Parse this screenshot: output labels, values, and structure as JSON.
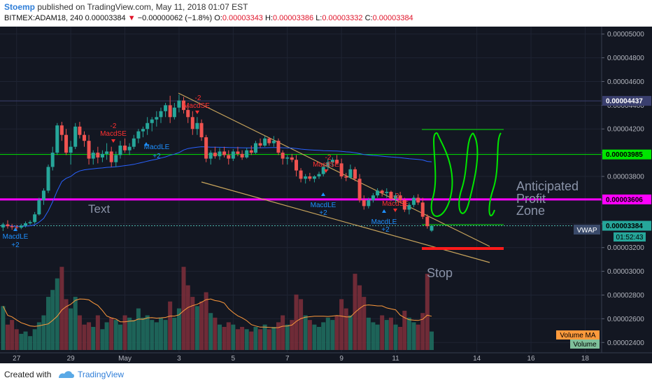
{
  "header": {
    "author": "Stoemp",
    "published_text": "published on TradingView.com, May 11, 2018 01:07 EST",
    "symbol": "BITMEX:ADAM18, 240",
    "last": "0.00003384",
    "change": "−0.00000062 (−1.8%)",
    "o_label": "O:",
    "o_value": "0.00003343",
    "h_label": "H:",
    "h_value": "0.00003386",
    "l_label": "L:",
    "l_value": "0.00003332",
    "c_label": "C:",
    "c_value": "0.00003384"
  },
  "footer": {
    "created_with": "Created with",
    "brand": "TradingView"
  },
  "chart_data": {
    "type": "candlestick",
    "x_ticks": [
      {
        "label": "27",
        "t": 0.2
      },
      {
        "label": "29",
        "t": 2.2
      },
      {
        "label": "May",
        "t": 4.2
      },
      {
        "label": "3",
        "t": 6.2
      },
      {
        "label": "5",
        "t": 8.2
      },
      {
        "label": "7",
        "t": 10.2
      },
      {
        "label": "9",
        "t": 12.2
      },
      {
        "label": "11",
        "t": 14.2
      },
      {
        "label": "14",
        "t": 17.2
      },
      {
        "label": "16",
        "t": 19.2
      },
      {
        "label": "18",
        "t": 21.2
      }
    ],
    "y_ticks": [
      "0.00005000",
      "0.00004800",
      "0.00004600",
      "0.00004400",
      "0.00004200",
      "0.00004000",
      "0.00003800",
      "0.00003600",
      "0.00003400",
      "0.00003200",
      "0.00003000",
      "0.00002800",
      "0.00002600",
      "0.00002400"
    ],
    "ylim": [
      2.313e-05,
      5.063e-05
    ],
    "price_labels": [
      {
        "value": "0.00004437",
        "price": 4.437e-05,
        "color": "#3a3f6e",
        "text_color": "#ffffff"
      },
      {
        "value": "0.00003985",
        "price": 3.985e-05,
        "color": "#00e600",
        "text_color": "#000000"
      },
      {
        "value": "0.00003606",
        "price": 3.606e-05,
        "color": "#ff00ff",
        "text_color": "#000000"
      },
      {
        "value": "0.00003384",
        "price": 3.384e-05,
        "color": "#26a69a",
        "text_color": "#000000"
      }
    ],
    "countdown": "01:52:43",
    "vwap_label": "VWAP",
    "legend": [
      "Volume MA",
      "Volume"
    ],
    "annotations": {
      "text_label": "Text",
      "zone_label_lines": [
        "Anticipated",
        "Profit",
        "Zone"
      ],
      "stop_label": "Stop"
    },
    "signals": {
      "long_label": "MacdLE",
      "long_sub": "+2",
      "short_label": "MacdSE",
      "short_top": "-2"
    },
    "candles": [
      [
        -0.3,
        3.37e-05,
        3.41e-05,
        3.34e-05,
        3.395e-05,
        190
      ],
      [
        -0.13,
        3.395e-05,
        3.43e-05,
        3.36e-05,
        3.38e-05,
        110
      ],
      [
        0.03,
        3.38e-05,
        3.4e-05,
        3.35e-05,
        3.372e-05,
        130
      ],
      [
        0.2,
        3.372e-05,
        3.39e-05,
        3.34e-05,
        3.368e-05,
        90
      ],
      [
        0.37,
        3.368e-05,
        3.4e-05,
        3.355e-05,
        3.385e-05,
        70
      ],
      [
        0.53,
        3.385e-05,
        3.42e-05,
        3.37e-05,
        3.405e-05,
        80
      ],
      [
        0.7,
        3.405e-05,
        3.43e-05,
        3.39e-05,
        3.415e-05,
        60
      ],
      [
        0.87,
        3.415e-05,
        3.5e-05,
        3.4e-05,
        3.48e-05,
        90
      ],
      [
        1.03,
        3.48e-05,
        3.62e-05,
        3.47e-05,
        3.6e-05,
        120
      ],
      [
        1.2,
        3.6e-05,
        3.7e-05,
        3.56e-05,
        3.68e-05,
        150
      ],
      [
        1.37,
        3.68e-05,
        3.9e-05,
        3.66e-05,
        3.88e-05,
        230
      ],
      [
        1.53,
        3.88e-05,
        4.05e-05,
        3.85e-05,
        4e-05,
        260
      ],
      [
        1.7,
        4e-05,
        4.25e-05,
        3.98e-05,
        4.23e-05,
        310
      ],
      [
        1.87,
        4.23e-05,
        4.26e-05,
        4.1e-05,
        4.15e-05,
        360
      ],
      [
        2.03,
        4.15e-05,
        4.2e-05,
        3.98e-05,
        4e-05,
        220
      ],
      [
        2.2,
        4e-05,
        4.1e-05,
        3.9e-05,
        4.05e-05,
        180
      ],
      [
        2.37,
        4.05e-05,
        4.25e-05,
        4.03e-05,
        4.22e-05,
        230
      ],
      [
        2.53,
        4.22e-05,
        4.26e-05,
        4.12e-05,
        4.15e-05,
        150
      ],
      [
        2.7,
        4.15e-05,
        4.18e-05,
        4.05e-05,
        4.1e-05,
        110
      ],
      [
        2.87,
        4.1e-05,
        4.15e-05,
        3.9e-05,
        3.95e-05,
        120
      ],
      [
        3.03,
        3.95e-05,
        4.02e-05,
        3.9e-05,
        4e-05,
        100
      ],
      [
        3.2,
        4e-05,
        4.05e-05,
        3.91e-05,
        3.96e-05,
        150
      ],
      [
        3.37,
        3.96e-05,
        4.02e-05,
        3.92e-05,
        3.99e-05,
        90
      ],
      [
        3.53,
        3.99e-05,
        4.08e-05,
        3.94e-05,
        4.01e-05,
        120
      ],
      [
        3.7,
        4.01e-05,
        4.05e-05,
        3.88e-05,
        3.92e-05,
        140
      ],
      [
        3.87,
        3.92e-05,
        4.01e-05,
        3.88e-05,
        3.98e-05,
        130
      ],
      [
        4.03,
        3.98e-05,
        4.1e-05,
        3.95e-05,
        4.06e-05,
        110
      ],
      [
        4.2,
        4.06e-05,
        4.12e-05,
        4e-05,
        4.02e-05,
        150
      ],
      [
        4.37,
        4.02e-05,
        4.08e-05,
        3.98e-05,
        4.05e-05,
        140
      ],
      [
        4.53,
        4.05e-05,
        4.15e-05,
        4.03e-05,
        4.12e-05,
        130
      ],
      [
        4.7,
        4.12e-05,
        4.2e-05,
        4.08e-05,
        4.18e-05,
        180
      ],
      [
        4.87,
        4.18e-05,
        4.22e-05,
        4.13e-05,
        4.2e-05,
        140
      ],
      [
        5.03,
        4.2e-05,
        4.3e-05,
        4.15e-05,
        4.25e-05,
        150
      ],
      [
        5.2,
        4.25e-05,
        4.3e-05,
        4.18e-05,
        4.28e-05,
        130
      ],
      [
        5.37,
        4.28e-05,
        4.35e-05,
        4.22e-05,
        4.3e-05,
        120
      ],
      [
        5.53,
        4.3e-05,
        4.38e-05,
        4.25e-05,
        4.35e-05,
        140
      ],
      [
        5.7,
        4.35e-05,
        4.42e-05,
        4.3e-05,
        4.4e-05,
        130
      ],
      [
        5.87,
        4.4e-05,
        4.48e-05,
        4.25e-05,
        4.3e-05,
        210
      ],
      [
        6.03,
        4.3e-05,
        4.42e-05,
        4.28e-05,
        4.38e-05,
        140
      ],
      [
        6.2,
        4.38e-05,
        4.49e-05,
        4.34e-05,
        4.44e-05,
        180
      ],
      [
        6.37,
        4.44e-05,
        4.47e-05,
        4.33e-05,
        4.36e-05,
        360
      ],
      [
        6.53,
        4.36e-05,
        4.4e-05,
        4.25e-05,
        4.3e-05,
        280
      ],
      [
        6.7,
        4.3e-05,
        4.35e-05,
        4.15e-05,
        4.2e-05,
        230
      ],
      [
        6.87,
        4.2e-05,
        4.3e-05,
        4.15e-05,
        4.25e-05,
        190
      ],
      [
        7.03,
        4.25e-05,
        4.28e-05,
        4.1e-05,
        4.13e-05,
        210
      ],
      [
        7.2,
        4.13e-05,
        4.15e-05,
        3.92e-05,
        3.95e-05,
        250
      ],
      [
        7.37,
        3.95e-05,
        4.02e-05,
        3.9e-05,
        4e-05,
        160
      ],
      [
        7.53,
        4e-05,
        4.05e-05,
        3.95e-05,
        3.97e-05,
        140
      ],
      [
        7.7,
        3.97e-05,
        4.04e-05,
        3.94e-05,
        4.01e-05,
        110
      ],
      [
        7.87,
        4.01e-05,
        4.05e-05,
        3.96e-05,
        3.98e-05,
        100
      ],
      [
        8.03,
        3.98e-05,
        4.02e-05,
        3.9e-05,
        3.95e-05,
        120
      ],
      [
        8.2,
        3.95e-05,
        4.03e-05,
        3.93e-05,
        4.01e-05,
        110
      ],
      [
        8.37,
        4.01e-05,
        4.05e-05,
        3.97e-05,
        3.99e-05,
        90
      ],
      [
        8.53,
        3.99e-05,
        4.02e-05,
        3.94e-05,
        3.96e-05,
        100
      ],
      [
        8.7,
        3.96e-05,
        4.04e-05,
        3.95e-05,
        4.02e-05,
        90
      ],
      [
        8.87,
        4.02e-05,
        4.06e-05,
        3.98e-05,
        4e-05,
        80
      ],
      [
        9.03,
        4e-05,
        4.1e-05,
        3.99e-05,
        4.08e-05,
        100
      ],
      [
        9.2,
        4.08e-05,
        4.12e-05,
        4.04e-05,
        4.06e-05,
        90
      ],
      [
        9.37,
        4.06e-05,
        4.14e-05,
        4.05e-05,
        4.12e-05,
        110
      ],
      [
        9.53,
        4.12e-05,
        4.13e-05,
        4.06e-05,
        4.08e-05,
        90
      ],
      [
        9.7,
        4.08e-05,
        4.14e-05,
        4.05e-05,
        4.1e-05,
        100
      ],
      [
        9.87,
        4.1e-05,
        4.12e-05,
        3.98e-05,
        4e-05,
        120
      ],
      [
        10.03,
        4e-05,
        4.02e-05,
        3.9e-05,
        3.95e-05,
        150
      ],
      [
        10.2,
        3.95e-05,
        3.98e-05,
        3.9e-05,
        3.96e-05,
        110
      ],
      [
        10.37,
        3.96e-05,
        3.99e-05,
        3.92e-05,
        3.94e-05,
        130
      ],
      [
        10.53,
        3.94e-05,
        3.98e-05,
        3.8e-05,
        3.85e-05,
        240
      ],
      [
        10.7,
        3.85e-05,
        3.87e-05,
        3.75e-05,
        3.78e-05,
        220
      ],
      [
        10.87,
        3.78e-05,
        3.82e-05,
        3.74e-05,
        3.8e-05,
        150
      ],
      [
        11.03,
        3.8e-05,
        3.83e-05,
        3.76e-05,
        3.78e-05,
        130
      ],
      [
        11.2,
        3.78e-05,
        3.81e-05,
        3.75e-05,
        3.8e-05,
        110
      ],
      [
        11.37,
        3.8e-05,
        3.84e-05,
        3.78e-05,
        3.82e-05,
        100
      ],
      [
        11.53,
        3.82e-05,
        3.9e-05,
        3.8e-05,
        3.88e-05,
        120
      ],
      [
        11.7,
        3.88e-05,
        3.95e-05,
        3.85e-05,
        3.92e-05,
        140
      ],
      [
        11.87,
        3.92e-05,
        3.96e-05,
        3.88e-05,
        3.94e-05,
        130
      ],
      [
        12.03,
        3.94e-05,
        3.98e-05,
        3.9e-05,
        3.91e-05,
        150
      ],
      [
        12.2,
        3.91e-05,
        3.95e-05,
        3.78e-05,
        3.8e-05,
        220
      ],
      [
        12.37,
        3.8e-05,
        3.83e-05,
        3.76e-05,
        3.79e-05,
        180
      ],
      [
        12.53,
        3.79e-05,
        3.9e-05,
        3.78e-05,
        3.86e-05,
        150
      ],
      [
        12.7,
        3.86e-05,
        3.88e-05,
        3.76e-05,
        3.78e-05,
        330
      ],
      [
        12.87,
        3.78e-05,
        3.82e-05,
        3.58e-05,
        3.6e-05,
        280
      ],
      [
        13.03,
        3.6e-05,
        3.64e-05,
        3.52e-05,
        3.55e-05,
        230
      ],
      [
        13.2,
        3.55e-05,
        3.62e-05,
        3.53e-05,
        3.6e-05,
        140
      ],
      [
        13.37,
        3.6e-05,
        3.66e-05,
        3.58e-05,
        3.64e-05,
        120
      ],
      [
        13.53,
        3.64e-05,
        3.7e-05,
        3.62e-05,
        3.68e-05,
        110
      ],
      [
        13.7,
        3.68e-05,
        3.69e-05,
        3.63e-05,
        3.66e-05,
        150
      ],
      [
        13.87,
        3.66e-05,
        3.7e-05,
        3.62e-05,
        3.67e-05,
        130
      ],
      [
        14.03,
        3.67e-05,
        3.68e-05,
        3.59e-05,
        3.61e-05,
        140
      ],
      [
        14.2,
        3.61e-05,
        3.66e-05,
        3.57e-05,
        3.64e-05,
        110
      ],
      [
        14.37,
        3.64e-05,
        3.67e-05,
        3.58e-05,
        3.6e-05,
        100
      ],
      [
        14.53,
        3.6e-05,
        3.62e-05,
        3.5e-05,
        3.52e-05,
        170
      ],
      [
        14.7,
        3.52e-05,
        3.58e-05,
        3.48e-05,
        3.56e-05,
        140
      ],
      [
        14.87,
        3.56e-05,
        3.64e-05,
        3.54e-05,
        3.62e-05,
        120
      ],
      [
        15.03,
        3.62e-05,
        3.65e-05,
        3.56e-05,
        3.58e-05,
        110
      ],
      [
        15.2,
        3.58e-05,
        3.62e-05,
        3.44e-05,
        3.46e-05,
        160
      ],
      [
        15.37,
        3.46e-05,
        3.48e-05,
        3.36e-05,
        3.38e-05,
        330
      ],
      [
        15.53,
        3.343e-05,
        3.386e-05,
        3.332e-05,
        3.384e-05,
        80
      ]
    ]
  }
}
